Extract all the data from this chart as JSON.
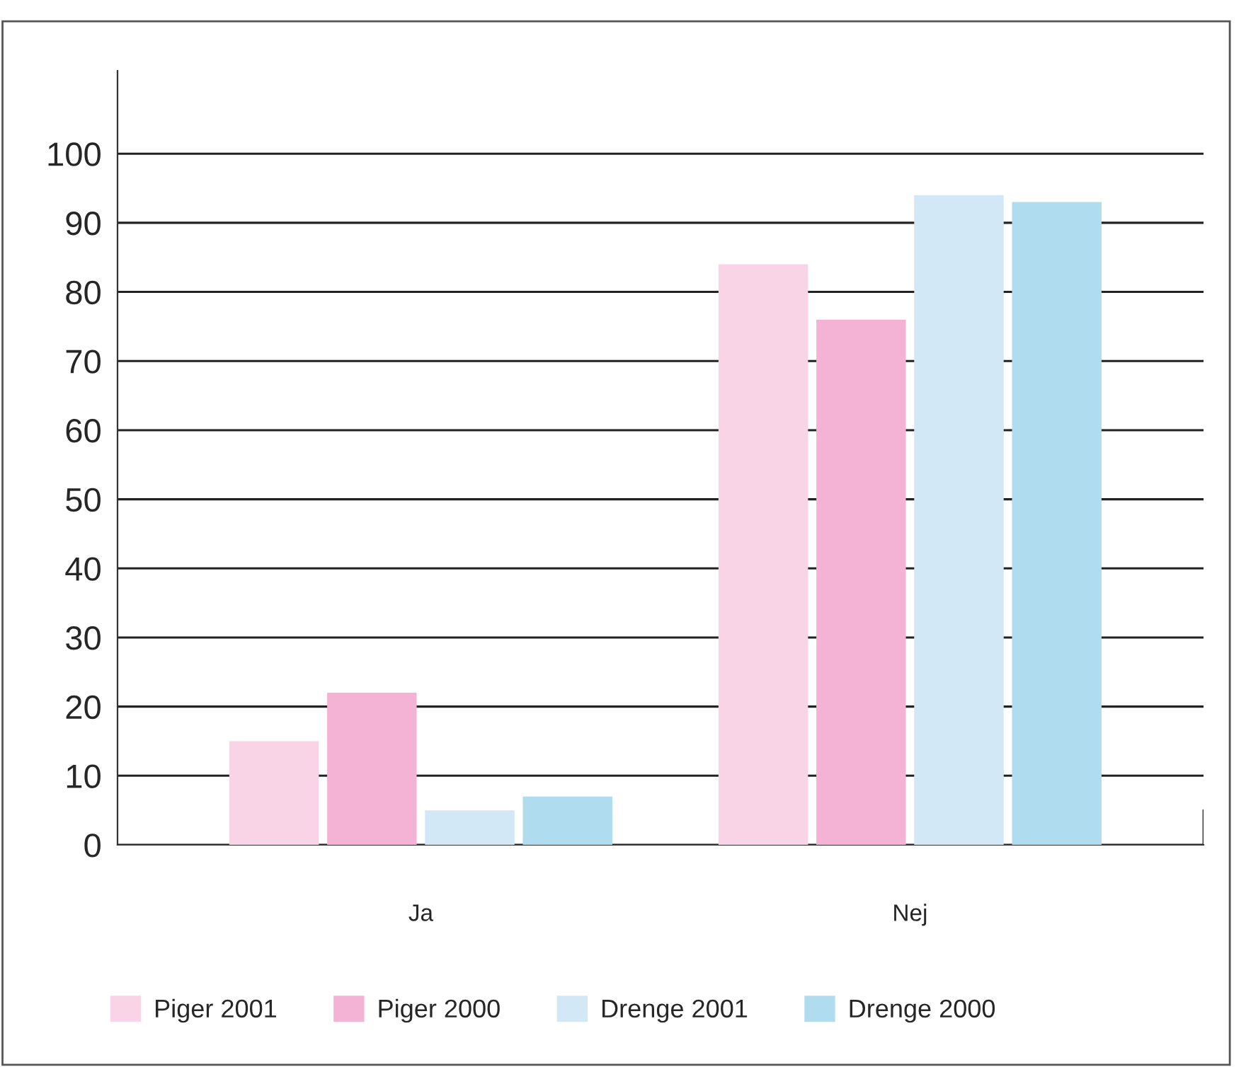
{
  "chart_data": {
    "type": "bar",
    "categories": [
      "Ja",
      "Nej"
    ],
    "series": [
      {
        "name": "Piger 2001",
        "color": "#f9d3e6",
        "values": [
          15,
          84
        ]
      },
      {
        "name": "Piger 2000",
        "color": "#f4b3d5",
        "values": [
          22,
          76
        ]
      },
      {
        "name": "Drenge 2001",
        "color": "#d2e8f6",
        "values": [
          5,
          94
        ]
      },
      {
        "name": "Drenge 2000",
        "color": "#b0dcf0",
        "values": [
          7,
          93
        ]
      }
    ],
    "ylim": [
      0,
      112
    ],
    "yticks": [
      0,
      10,
      20,
      30,
      40,
      50,
      60,
      70,
      80,
      90,
      100
    ],
    "grid": "y",
    "legend": "bottom"
  }
}
